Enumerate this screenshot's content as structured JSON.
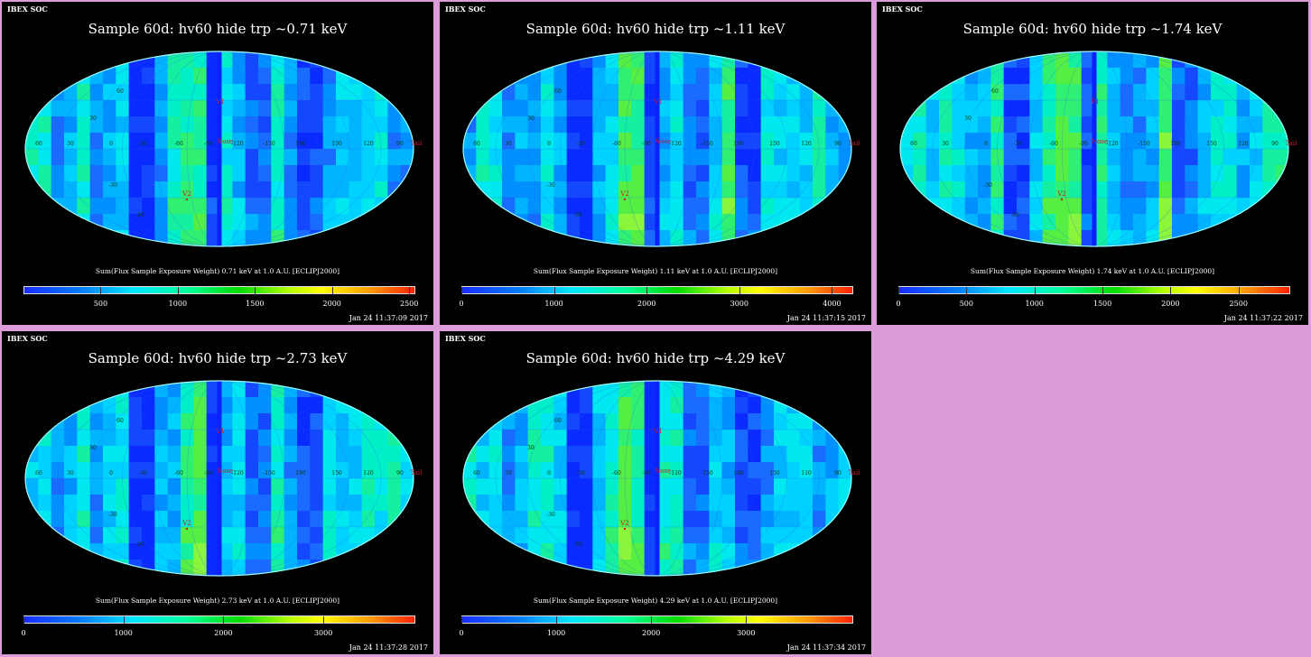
{
  "watermark": "IBEX SOC",
  "map_labels": {
    "ram": "Nose",
    "tail": "Tail",
    "v1": "V1",
    "v2": "V2",
    "longitudes": [
      "60",
      "30",
      "0",
      "-30",
      "-60",
      "-90",
      "-120",
      "-150",
      "180",
      "150",
      "120",
      "90"
    ],
    "latitudes": [
      "60",
      "30",
      "-30",
      "-60"
    ]
  },
  "panels": [
    {
      "title": "Sample 60d: hv60 hide trp ~0.71 keV",
      "caption": "Sum(Flux Sample Exposure Weight) 0.71 keV at 1.0 A.U. [ECLIPJ2000]",
      "timestamp": "Jan 24 11:37:09 2017",
      "colorbar": {
        "min": 0,
        "max": 2540,
        "ticks": [
          "500",
          "1000",
          "1500",
          "2000",
          "2500"
        ],
        "tick_values": [
          500,
          1000,
          1500,
          2000,
          2500
        ]
      }
    },
    {
      "title": "Sample 60d: hv60 hide trp ~1.11 keV",
      "caption": "Sum(Flux Sample Exposure Weight) 1.11 keV at 1.0 A.U. [ECLIPJ2000]",
      "timestamp": "Jan 24 11:37:15 2017",
      "colorbar": {
        "min": 0,
        "max": 4230,
        "ticks": [
          "0",
          "1000",
          "2000",
          "3000",
          "4000"
        ],
        "tick_values": [
          0,
          1000,
          2000,
          3000,
          4000
        ]
      }
    },
    {
      "title": "Sample 60d: hv60 hide trp ~1.74 keV",
      "caption": "Sum(Flux Sample Exposure Weight) 1.74 keV at 1.0 A.U. [ECLIPJ2000]",
      "timestamp": "Jan 24 11:37:22 2017",
      "colorbar": {
        "min": 0,
        "max": 2880,
        "ticks": [
          "0",
          "500",
          "1000",
          "1500",
          "2000",
          "2500"
        ],
        "tick_values": [
          0,
          500,
          1000,
          1500,
          2000,
          2500
        ]
      }
    },
    {
      "title": "Sample 60d: hv60 hide trp ~2.73 keV",
      "caption": "Sum(Flux Sample Exposure Weight) 2.73 keV at 1.0 A.U. [ECLIPJ2000]",
      "timestamp": "Jan 24 11:37:28 2017",
      "colorbar": {
        "min": 0,
        "max": 3920,
        "ticks": [
          "0",
          "1000",
          "2000",
          "3000"
        ],
        "tick_values": [
          0,
          1000,
          2000,
          3000
        ]
      }
    },
    {
      "title": "Sample 60d: hv60 hide trp ~4.29 keV",
      "caption": "Sum(Flux Sample Exposure Weight) 4.29 keV at 1.0 A.U. [ECLIPJ2000]",
      "timestamp": "Jan 24 11:37:34 2017",
      "colorbar": {
        "min": 0,
        "max": 4130,
        "ticks": [
          "0",
          "1000",
          "2000",
          "3000"
        ],
        "tick_values": [
          0,
          1000,
          2000,
          3000
        ]
      }
    }
  ],
  "chart_data": [
    {
      "type": "heatmap",
      "title": "Sample 60d: hv60 hide trp ~0.71 keV",
      "projection": "Mollweide ecliptic sky map",
      "colorbar_range": [
        0,
        2540
      ],
      "colormap": [
        "#1c2cff",
        "#00e8ff",
        "#00dd00",
        "#ffff00",
        "#ff2000"
      ]
    },
    {
      "type": "heatmap",
      "title": "Sample 60d: hv60 hide trp ~1.11 keV",
      "projection": "Mollweide ecliptic sky map",
      "colorbar_range": [
        0,
        4230
      ],
      "colormap": [
        "#1c2cff",
        "#00e8ff",
        "#00dd00",
        "#ffff00",
        "#ff2000"
      ]
    },
    {
      "type": "heatmap",
      "title": "Sample 60d: hv60 hide trp ~1.74 keV",
      "projection": "Mollweide ecliptic sky map",
      "colorbar_range": [
        0,
        2880
      ],
      "colormap": [
        "#1c2cff",
        "#00e8ff",
        "#00dd00",
        "#ffff00",
        "#ff2000"
      ]
    },
    {
      "type": "heatmap",
      "title": "Sample 60d: hv60 hide trp ~2.73 keV",
      "projection": "Mollweide ecliptic sky map",
      "colorbar_range": [
        0,
        3920
      ],
      "colormap": [
        "#1c2cff",
        "#00e8ff",
        "#00dd00",
        "#ffff00",
        "#ff2000"
      ]
    },
    {
      "type": "heatmap",
      "title": "Sample 60d: hv60 hide trp ~4.29 keV",
      "projection": "Mollweide ecliptic sky map",
      "colorbar_range": [
        0,
        4130
      ],
      "colormap": [
        "#1c2cff",
        "#00e8ff",
        "#00dd00",
        "#ffff00",
        "#ff2000"
      ]
    }
  ]
}
